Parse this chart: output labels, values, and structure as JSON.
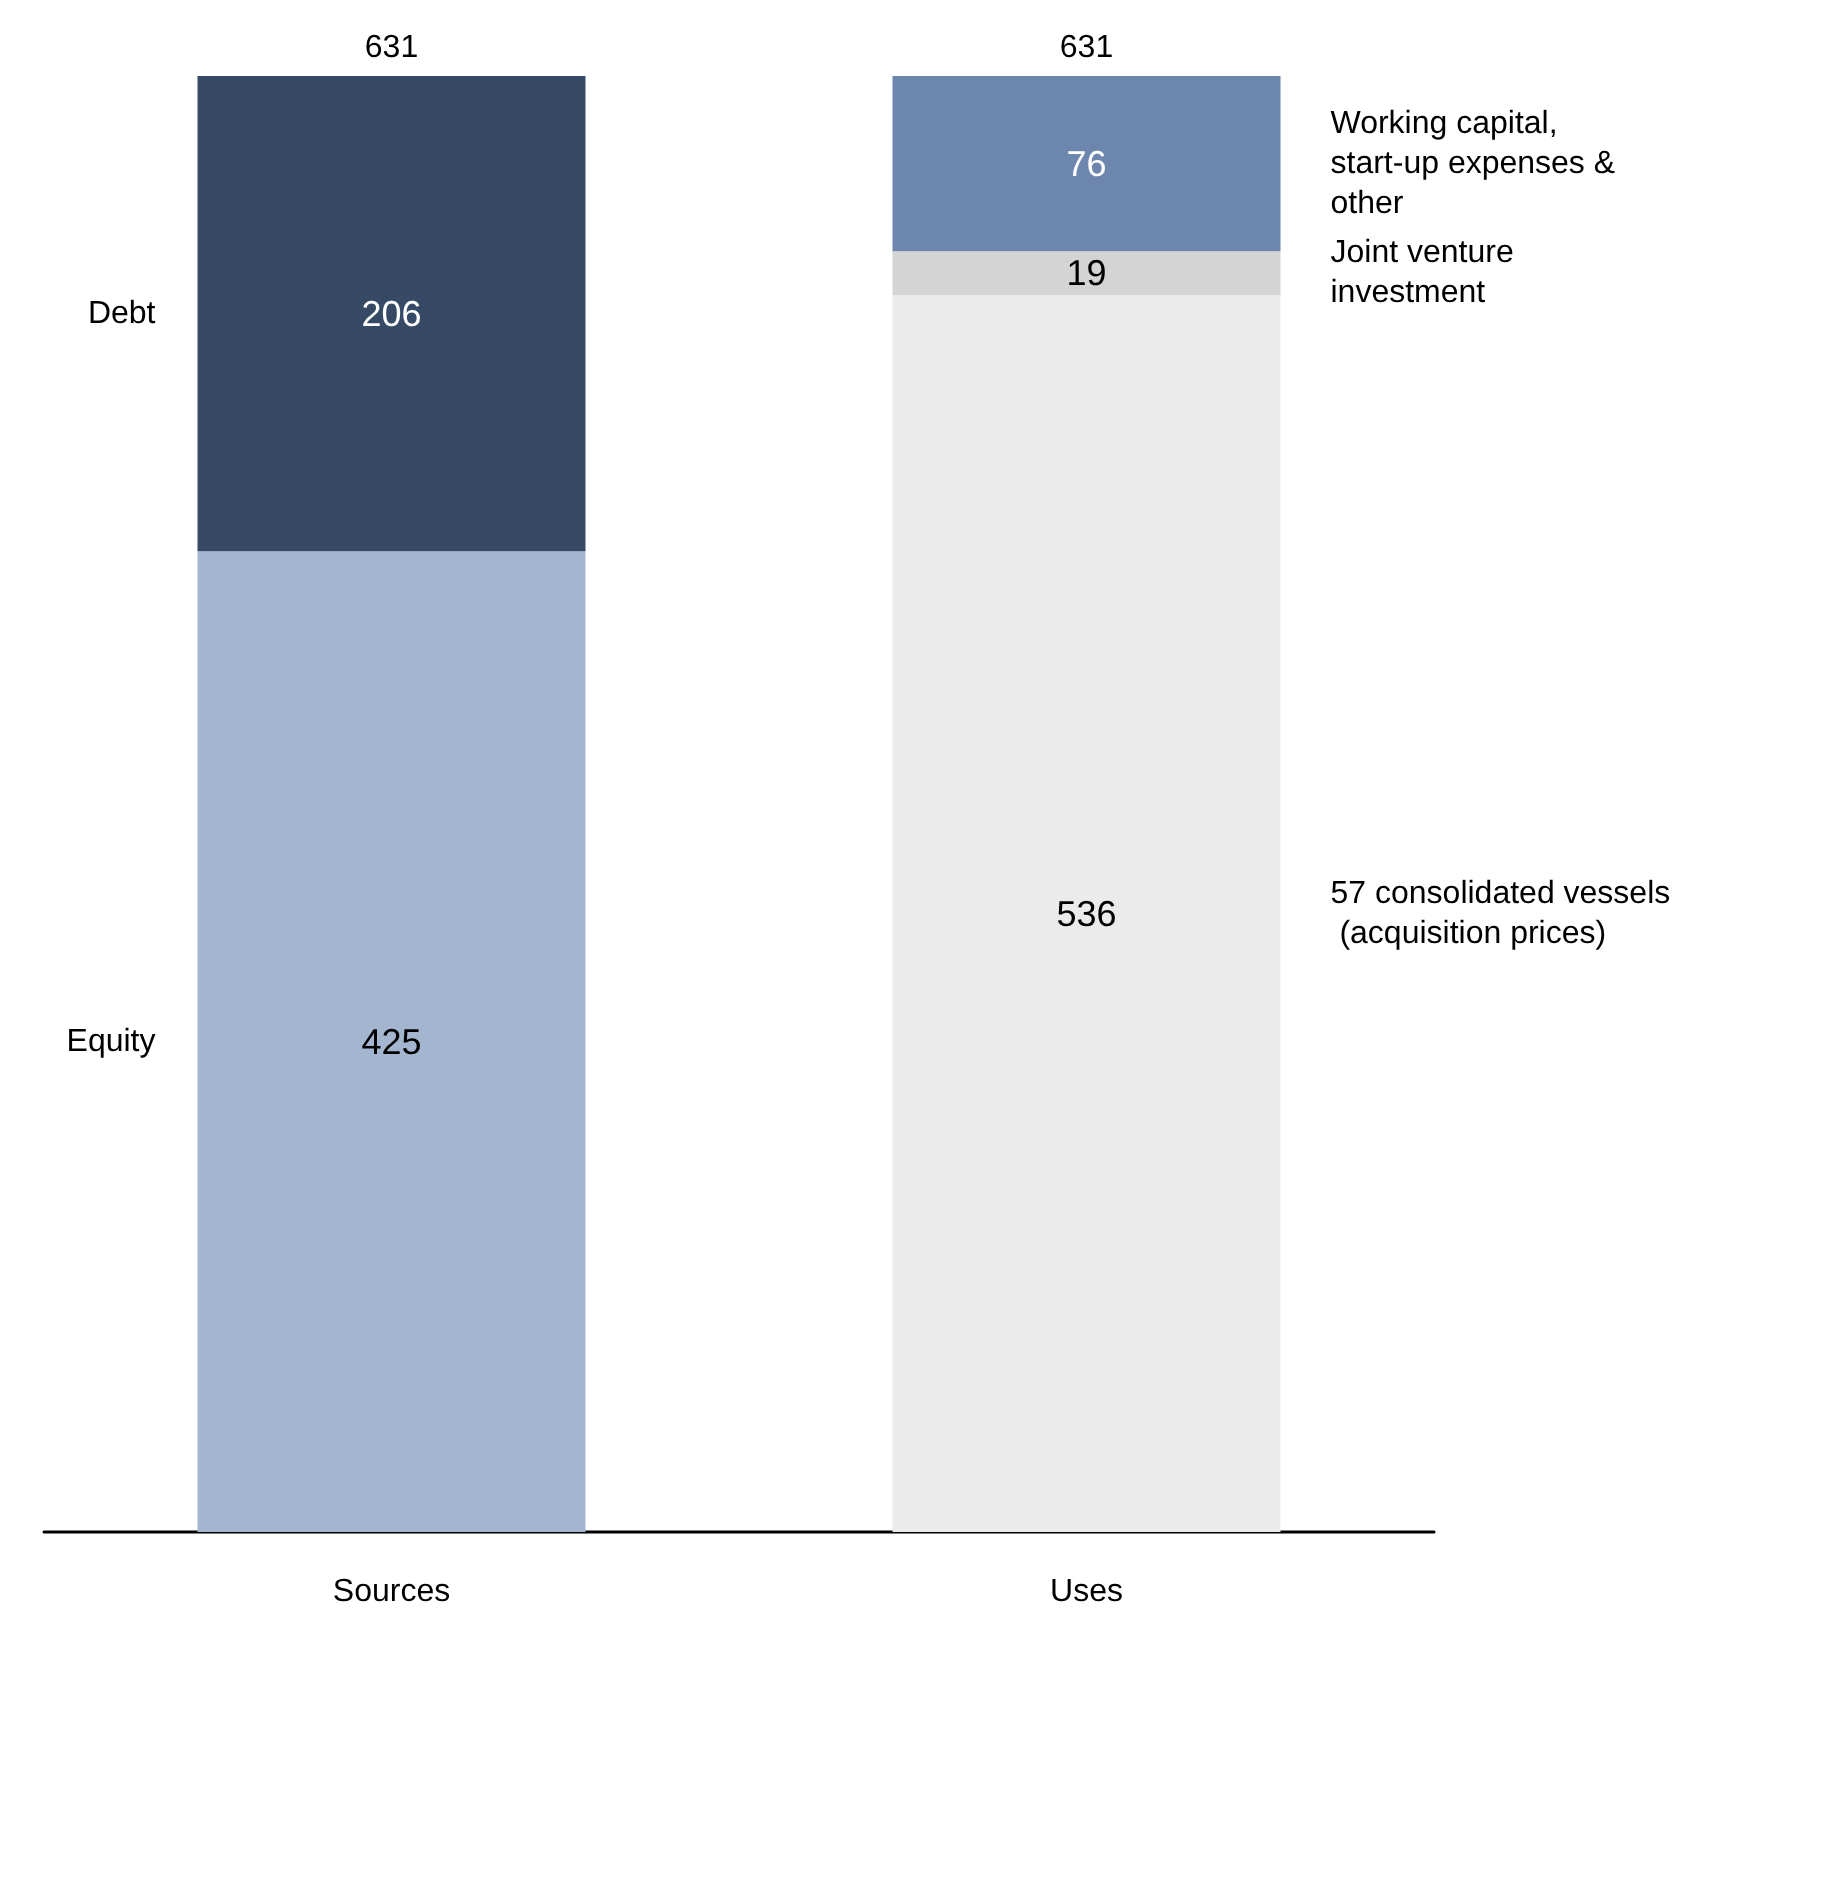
{
  "chart_data": {
    "type": "bar",
    "stacked": true,
    "categories": [
      "Sources",
      "Uses"
    ],
    "series": [
      {
        "name": "Equity",
        "color": "#a3b5cf",
        "values": [
          425,
          null
        ]
      },
      {
        "name": "Debt",
        "color": "#364a66",
        "values": [
          206,
          null
        ]
      },
      {
        "name": "57 consolidated vessels (acquisition prices)",
        "color": "#ebebeb",
        "values": [
          null,
          536
        ]
      },
      {
        "name": "Joint venture investment",
        "color": "#d4d4d4",
        "values": [
          null,
          19
        ]
      },
      {
        "name": "Working capital, start-up expenses & other",
        "color": "#6d86ad",
        "values": [
          null,
          76
        ]
      }
    ],
    "data_labels": true,
    "totals": [
      "631",
      "631"
    ],
    "tick_labels": "x"
  }
}
